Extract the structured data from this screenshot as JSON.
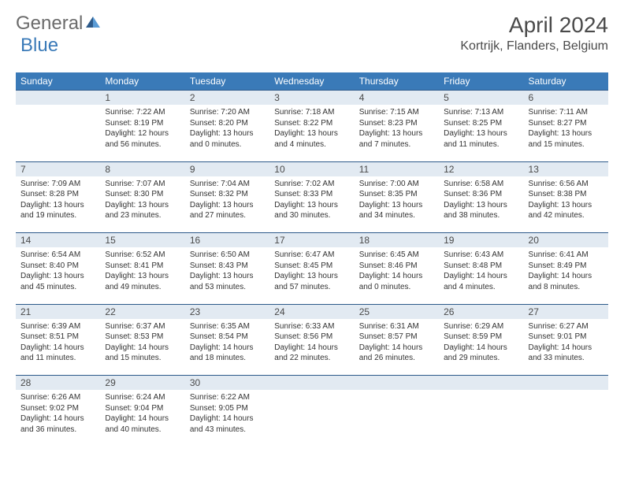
{
  "logo": {
    "general": "General",
    "blue": "Blue"
  },
  "title": "April 2024",
  "location": "Kortrijk, Flanders, Belgium",
  "weekdays": [
    "Sunday",
    "Monday",
    "Tuesday",
    "Wednesday",
    "Thursday",
    "Friday",
    "Saturday"
  ],
  "style": {
    "header_bg": "#3a7ab8",
    "header_fg": "#ffffff",
    "daynum_bg": "#e2eaf2",
    "border_color": "#2d5a8a",
    "text_color": "#333333",
    "logo_gray": "#6b6b6b",
    "logo_blue": "#3a7ab8",
    "title_fontsize": 28,
    "location_fontsize": 16,
    "header_fontsize": 12,
    "daynum_fontsize": 12,
    "content_fontsize": 10
  },
  "weeks": [
    {
      "nums": [
        "",
        "1",
        "2",
        "3",
        "4",
        "5",
        "6"
      ],
      "cells": [
        {
          "empty": true
        },
        {
          "sunrise": "Sunrise: 7:22 AM",
          "sunset": "Sunset: 8:19 PM",
          "daylight1": "Daylight: 12 hours",
          "daylight2": "and 56 minutes."
        },
        {
          "sunrise": "Sunrise: 7:20 AM",
          "sunset": "Sunset: 8:20 PM",
          "daylight1": "Daylight: 13 hours",
          "daylight2": "and 0 minutes."
        },
        {
          "sunrise": "Sunrise: 7:18 AM",
          "sunset": "Sunset: 8:22 PM",
          "daylight1": "Daylight: 13 hours",
          "daylight2": "and 4 minutes."
        },
        {
          "sunrise": "Sunrise: 7:15 AM",
          "sunset": "Sunset: 8:23 PM",
          "daylight1": "Daylight: 13 hours",
          "daylight2": "and 7 minutes."
        },
        {
          "sunrise": "Sunrise: 7:13 AM",
          "sunset": "Sunset: 8:25 PM",
          "daylight1": "Daylight: 13 hours",
          "daylight2": "and 11 minutes."
        },
        {
          "sunrise": "Sunrise: 7:11 AM",
          "sunset": "Sunset: 8:27 PM",
          "daylight1": "Daylight: 13 hours",
          "daylight2": "and 15 minutes."
        }
      ]
    },
    {
      "nums": [
        "7",
        "8",
        "9",
        "10",
        "11",
        "12",
        "13"
      ],
      "cells": [
        {
          "sunrise": "Sunrise: 7:09 AM",
          "sunset": "Sunset: 8:28 PM",
          "daylight1": "Daylight: 13 hours",
          "daylight2": "and 19 minutes."
        },
        {
          "sunrise": "Sunrise: 7:07 AM",
          "sunset": "Sunset: 8:30 PM",
          "daylight1": "Daylight: 13 hours",
          "daylight2": "and 23 minutes."
        },
        {
          "sunrise": "Sunrise: 7:04 AM",
          "sunset": "Sunset: 8:32 PM",
          "daylight1": "Daylight: 13 hours",
          "daylight2": "and 27 minutes."
        },
        {
          "sunrise": "Sunrise: 7:02 AM",
          "sunset": "Sunset: 8:33 PM",
          "daylight1": "Daylight: 13 hours",
          "daylight2": "and 30 minutes."
        },
        {
          "sunrise": "Sunrise: 7:00 AM",
          "sunset": "Sunset: 8:35 PM",
          "daylight1": "Daylight: 13 hours",
          "daylight2": "and 34 minutes."
        },
        {
          "sunrise": "Sunrise: 6:58 AM",
          "sunset": "Sunset: 8:36 PM",
          "daylight1": "Daylight: 13 hours",
          "daylight2": "and 38 minutes."
        },
        {
          "sunrise": "Sunrise: 6:56 AM",
          "sunset": "Sunset: 8:38 PM",
          "daylight1": "Daylight: 13 hours",
          "daylight2": "and 42 minutes."
        }
      ]
    },
    {
      "nums": [
        "14",
        "15",
        "16",
        "17",
        "18",
        "19",
        "20"
      ],
      "cells": [
        {
          "sunrise": "Sunrise: 6:54 AM",
          "sunset": "Sunset: 8:40 PM",
          "daylight1": "Daylight: 13 hours",
          "daylight2": "and 45 minutes."
        },
        {
          "sunrise": "Sunrise: 6:52 AM",
          "sunset": "Sunset: 8:41 PM",
          "daylight1": "Daylight: 13 hours",
          "daylight2": "and 49 minutes."
        },
        {
          "sunrise": "Sunrise: 6:50 AM",
          "sunset": "Sunset: 8:43 PM",
          "daylight1": "Daylight: 13 hours",
          "daylight2": "and 53 minutes."
        },
        {
          "sunrise": "Sunrise: 6:47 AM",
          "sunset": "Sunset: 8:45 PM",
          "daylight1": "Daylight: 13 hours",
          "daylight2": "and 57 minutes."
        },
        {
          "sunrise": "Sunrise: 6:45 AM",
          "sunset": "Sunset: 8:46 PM",
          "daylight1": "Daylight: 14 hours",
          "daylight2": "and 0 minutes."
        },
        {
          "sunrise": "Sunrise: 6:43 AM",
          "sunset": "Sunset: 8:48 PM",
          "daylight1": "Daylight: 14 hours",
          "daylight2": "and 4 minutes."
        },
        {
          "sunrise": "Sunrise: 6:41 AM",
          "sunset": "Sunset: 8:49 PM",
          "daylight1": "Daylight: 14 hours",
          "daylight2": "and 8 minutes."
        }
      ]
    },
    {
      "nums": [
        "21",
        "22",
        "23",
        "24",
        "25",
        "26",
        "27"
      ],
      "cells": [
        {
          "sunrise": "Sunrise: 6:39 AM",
          "sunset": "Sunset: 8:51 PM",
          "daylight1": "Daylight: 14 hours",
          "daylight2": "and 11 minutes."
        },
        {
          "sunrise": "Sunrise: 6:37 AM",
          "sunset": "Sunset: 8:53 PM",
          "daylight1": "Daylight: 14 hours",
          "daylight2": "and 15 minutes."
        },
        {
          "sunrise": "Sunrise: 6:35 AM",
          "sunset": "Sunset: 8:54 PM",
          "daylight1": "Daylight: 14 hours",
          "daylight2": "and 18 minutes."
        },
        {
          "sunrise": "Sunrise: 6:33 AM",
          "sunset": "Sunset: 8:56 PM",
          "daylight1": "Daylight: 14 hours",
          "daylight2": "and 22 minutes."
        },
        {
          "sunrise": "Sunrise: 6:31 AM",
          "sunset": "Sunset: 8:57 PM",
          "daylight1": "Daylight: 14 hours",
          "daylight2": "and 26 minutes."
        },
        {
          "sunrise": "Sunrise: 6:29 AM",
          "sunset": "Sunset: 8:59 PM",
          "daylight1": "Daylight: 14 hours",
          "daylight2": "and 29 minutes."
        },
        {
          "sunrise": "Sunrise: 6:27 AM",
          "sunset": "Sunset: 9:01 PM",
          "daylight1": "Daylight: 14 hours",
          "daylight2": "and 33 minutes."
        }
      ]
    },
    {
      "nums": [
        "28",
        "29",
        "30",
        "",
        "",
        "",
        ""
      ],
      "cells": [
        {
          "sunrise": "Sunrise: 6:26 AM",
          "sunset": "Sunset: 9:02 PM",
          "daylight1": "Daylight: 14 hours",
          "daylight2": "and 36 minutes."
        },
        {
          "sunrise": "Sunrise: 6:24 AM",
          "sunset": "Sunset: 9:04 PM",
          "daylight1": "Daylight: 14 hours",
          "daylight2": "and 40 minutes."
        },
        {
          "sunrise": "Sunrise: 6:22 AM",
          "sunset": "Sunset: 9:05 PM",
          "daylight1": "Daylight: 14 hours",
          "daylight2": "and 43 minutes."
        },
        {
          "empty": true
        },
        {
          "empty": true
        },
        {
          "empty": true
        },
        {
          "empty": true
        }
      ]
    }
  ]
}
